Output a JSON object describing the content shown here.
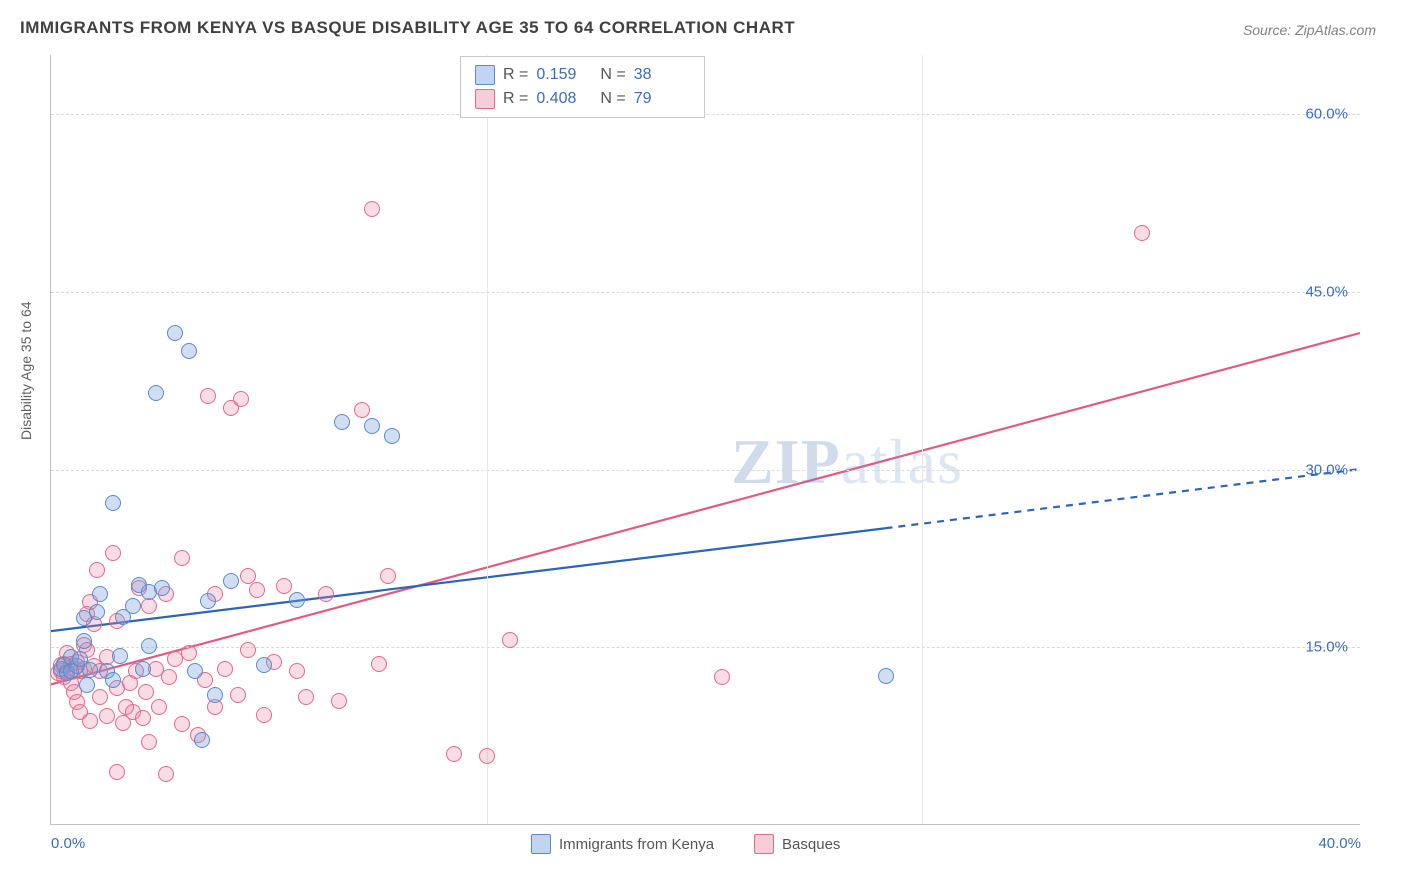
{
  "title": "IMMIGRANTS FROM KENYA VS BASQUE DISABILITY AGE 35 TO 64 CORRELATION CHART",
  "source": "Source: ZipAtlas.com",
  "ylabel": "Disability Age 35 to 64",
  "watermark": {
    "zip": "ZIP",
    "atlas": "atlas"
  },
  "chart": {
    "type": "scatter",
    "background_color": "#ffffff",
    "grid_color": "#d8d8d8",
    "xlim": [
      0,
      40
    ],
    "ylim": [
      0,
      65
    ],
    "yticks": [
      {
        "v": 15,
        "label": "15.0%"
      },
      {
        "v": 30,
        "label": "30.0%"
      },
      {
        "v": 45,
        "label": "45.0%"
      },
      {
        "v": 60,
        "label": "60.0%"
      }
    ],
    "xticks": [
      {
        "v": 0,
        "label": "0.0%",
        "class": "first"
      },
      {
        "v": 40,
        "label": "40.0%",
        "class": "last"
      }
    ],
    "xgrid": [
      13.3,
      26.6
    ],
    "marker_radius": 8,
    "series": {
      "a": {
        "label": "Immigrants from Kenya",
        "color_fill": "rgba(120,160,220,0.35)",
        "color_stroke": "#5a8acb",
        "r_value": "0.159",
        "n_value": "38",
        "trend": {
          "x1": 0,
          "y1": 16.3,
          "x2_solid": 25.5,
          "y2_solid": 25.0,
          "x2": 40,
          "y2": 30.0,
          "stroke": "#2b64b8",
          "width": 2.2
        },
        "points": [
          [
            0.3,
            13.2
          ],
          [
            0.4,
            13.5
          ],
          [
            0.5,
            12.8
          ],
          [
            0.6,
            13.0
          ],
          [
            0.6,
            14.2
          ],
          [
            0.8,
            13.4
          ],
          [
            0.9,
            14.0
          ],
          [
            1.0,
            15.5
          ],
          [
            1.0,
            17.5
          ],
          [
            1.1,
            11.8
          ],
          [
            1.2,
            13.1
          ],
          [
            1.4,
            18.0
          ],
          [
            1.5,
            19.5
          ],
          [
            1.7,
            13.0
          ],
          [
            1.9,
            12.2
          ],
          [
            1.9,
            27.2
          ],
          [
            2.1,
            14.3
          ],
          [
            2.2,
            17.6
          ],
          [
            2.5,
            18.5
          ],
          [
            2.7,
            20.3
          ],
          [
            2.8,
            13.2
          ],
          [
            3.0,
            15.1
          ],
          [
            3.0,
            19.7
          ],
          [
            3.2,
            36.5
          ],
          [
            3.4,
            20.0
          ],
          [
            3.8,
            41.5
          ],
          [
            4.2,
            40.0
          ],
          [
            4.4,
            13.0
          ],
          [
            4.6,
            7.2
          ],
          [
            4.8,
            18.9
          ],
          [
            5.0,
            11.0
          ],
          [
            5.5,
            20.6
          ],
          [
            6.5,
            13.5
          ],
          [
            7.5,
            19.0
          ],
          [
            8.9,
            34.0
          ],
          [
            9.8,
            33.7
          ],
          [
            10.4,
            32.8
          ],
          [
            25.5,
            12.6
          ]
        ]
      },
      "b": {
        "label": "Basques",
        "color_fill": "rgba(235,130,160,0.28)",
        "color_stroke": "#e06a8a",
        "r_value": "0.408",
        "n_value": "79",
        "trend": {
          "x1": 0,
          "y1": 11.8,
          "x2_solid": 40,
          "y2_solid": 41.5,
          "x2": 40,
          "y2": 41.5,
          "stroke": "#e05a82",
          "width": 2.2
        },
        "points": [
          [
            0.2,
            12.8
          ],
          [
            0.3,
            13.0
          ],
          [
            0.3,
            13.5
          ],
          [
            0.4,
            12.5
          ],
          [
            0.4,
            13.6
          ],
          [
            0.5,
            13.0
          ],
          [
            0.5,
            14.5
          ],
          [
            0.6,
            12.0
          ],
          [
            0.6,
            13.6
          ],
          [
            0.7,
            11.2
          ],
          [
            0.7,
            13.2
          ],
          [
            0.8,
            10.4
          ],
          [
            0.8,
            13.8
          ],
          [
            0.9,
            9.5
          ],
          [
            0.9,
            13.0
          ],
          [
            1.0,
            13.2
          ],
          [
            1.0,
            15.2
          ],
          [
            1.1,
            17.8
          ],
          [
            1.1,
            14.8
          ],
          [
            1.2,
            18.8
          ],
          [
            1.2,
            8.8
          ],
          [
            1.3,
            13.4
          ],
          [
            1.3,
            17.0
          ],
          [
            1.4,
            21.5
          ],
          [
            1.5,
            10.8
          ],
          [
            1.5,
            13.0
          ],
          [
            1.7,
            9.2
          ],
          [
            1.7,
            14.2
          ],
          [
            1.9,
            23.0
          ],
          [
            2.0,
            11.6
          ],
          [
            2.0,
            17.2
          ],
          [
            2.2,
            8.6
          ],
          [
            2.3,
            10.0
          ],
          [
            2.4,
            12.0
          ],
          [
            2.5,
            9.5
          ],
          [
            2.6,
            13.0
          ],
          [
            2.7,
            20.0
          ],
          [
            2.8,
            9.0
          ],
          [
            2.9,
            11.2
          ],
          [
            3.0,
            7.0
          ],
          [
            3.0,
            18.5
          ],
          [
            3.2,
            13.2
          ],
          [
            3.3,
            10.0
          ],
          [
            3.5,
            19.5
          ],
          [
            3.6,
            12.5
          ],
          [
            3.8,
            14.0
          ],
          [
            4.0,
            8.5
          ],
          [
            4.0,
            22.5
          ],
          [
            4.2,
            14.5
          ],
          [
            4.5,
            7.6
          ],
          [
            4.7,
            12.2
          ],
          [
            4.8,
            36.2
          ],
          [
            5.0,
            10.0
          ],
          [
            5.0,
            19.5
          ],
          [
            5.3,
            13.2
          ],
          [
            5.5,
            35.2
          ],
          [
            5.7,
            11.0
          ],
          [
            5.8,
            36.0
          ],
          [
            6.0,
            14.8
          ],
          [
            6.0,
            21.0
          ],
          [
            6.3,
            19.8
          ],
          [
            6.5,
            9.3
          ],
          [
            6.8,
            13.8
          ],
          [
            7.1,
            20.2
          ],
          [
            7.5,
            13.0
          ],
          [
            7.8,
            10.8
          ],
          [
            8.4,
            19.5
          ],
          [
            8.8,
            10.5
          ],
          [
            9.5,
            35.0
          ],
          [
            9.8,
            52.0
          ],
          [
            10.0,
            13.6
          ],
          [
            10.3,
            21.0
          ],
          [
            12.3,
            6.0
          ],
          [
            14.0,
            15.6
          ],
          [
            13.3,
            5.8
          ],
          [
            20.5,
            12.5
          ],
          [
            33.3,
            50.0
          ],
          [
            2.0,
            4.5
          ],
          [
            3.5,
            4.3
          ]
        ]
      }
    },
    "legend_box": {
      "r_label": "R =",
      "n_label": "N ="
    },
    "bottom_legend": {
      "a": "Immigrants from Kenya",
      "b": "Basques"
    }
  }
}
